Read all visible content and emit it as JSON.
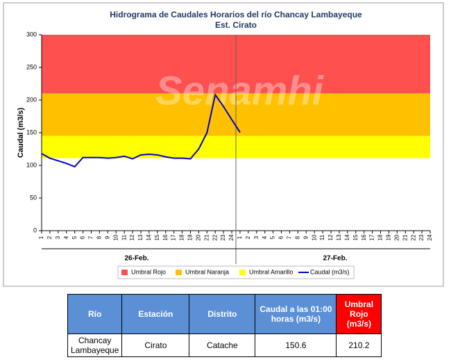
{
  "chart_data": {
    "type": "line",
    "title": "Hidrograma de Caudales Horarios del río Chancay Lambayeque",
    "subtitle": "Est. Cirato",
    "y_label": "Caudal  (m3/s)",
    "watermark": "Senamhi",
    "categories": [
      "1",
      "2",
      "3",
      "4",
      "5",
      "6",
      "7",
      "8",
      "9",
      "10",
      "11",
      "12",
      "13",
      "14",
      "15",
      "16",
      "17",
      "18",
      "19",
      "20",
      "21",
      "22",
      "23",
      "24",
      "1",
      "2",
      "3",
      "4",
      "5",
      "6",
      "7",
      "8",
      "9",
      "10",
      "11",
      "12",
      "13",
      "14",
      "15",
      "16",
      "17",
      "18",
      "19",
      "20",
      "21",
      "22",
      "23",
      "24"
    ],
    "groups": [
      "26-Feb.",
      "27-Feb."
    ],
    "thresholds": [
      {
        "name": "Umbral Rojo",
        "color": "#ff5050",
        "value": 210.2
      },
      {
        "name": "Umbral Naranja",
        "color": "#ffc000",
        "value": 145
      },
      {
        "name": "Umbral Amarillo",
        "color": "#ffff00",
        "value": 111
      }
    ],
    "series": [
      {
        "name": "Caudal (m3/s)",
        "color": "#0000cc",
        "values": [
          118,
          111,
          107,
          103,
          98,
          112,
          112,
          112,
          111,
          112,
          114,
          110,
          116,
          117,
          116,
          113,
          111,
          111,
          110,
          125,
          150,
          208,
          190,
          170,
          150.6,
          null,
          null,
          null,
          null,
          null,
          null,
          null,
          null,
          null,
          null,
          null,
          null,
          null,
          null,
          null,
          null,
          null,
          null,
          null,
          null,
          null,
          null,
          null
        ]
      }
    ],
    "ylim": [
      0,
      300
    ],
    "yticks": [
      0,
      50,
      100,
      150,
      200,
      250,
      300
    ]
  },
  "table": {
    "header": [
      "Río",
      "Estación",
      "Distrito",
      "Caudal a las 01:00 horas (m3/s)",
      "Umbral Rojo (m3/s)"
    ],
    "rows": [
      [
        "Chancay Lambayeque",
        "Cirato",
        "Catache",
        "150.6",
        "210.2"
      ]
    ]
  }
}
